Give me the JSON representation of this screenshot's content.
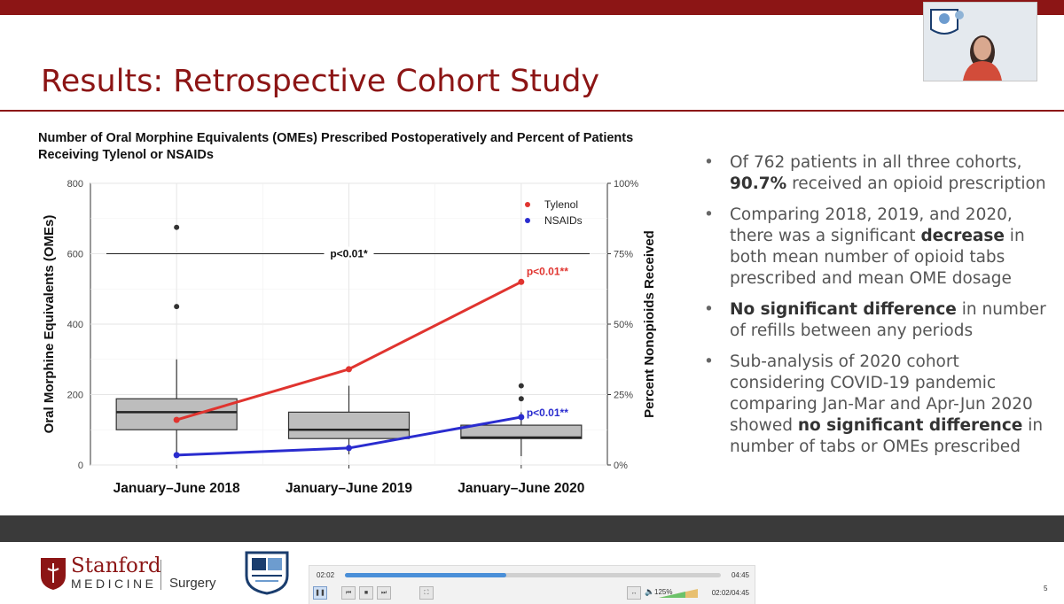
{
  "slide": {
    "title": "Results: Retrospective Cohort Study",
    "page_number": "5"
  },
  "chart_data": {
    "type": "box",
    "title": "Number of Oral Morphine Equivalents (OMEs) Prescribed Postoperatively and Percent of Patients Receiving Tylenol or NSAIDs",
    "ylabel": "Oral Morphine Equivalents (OMEs)",
    "y2label": "Percent Nonopioids Received",
    "categories": [
      "January–June 2018",
      "January–June 2019",
      "January–June 2020"
    ],
    "ylim": [
      0,
      800
    ],
    "y_ticks": [
      "0",
      "200",
      "400",
      "600",
      "800"
    ],
    "y2lim": [
      0,
      100
    ],
    "y2_ticks": [
      "0%",
      "25%",
      "50%",
      "75%",
      "100%"
    ],
    "grid": true,
    "boxes": [
      {
        "q1": 100,
        "median": 150,
        "q3": 188,
        "whisker_low": 30,
        "whisker_high": 300,
        "outliers": [
          450,
          675
        ]
      },
      {
        "q1": 75,
        "median": 100,
        "q3": 150,
        "whisker_low": 30,
        "whisker_high": 225,
        "outliers": []
      },
      {
        "q1": 75,
        "median": 78,
        "q3": 113,
        "whisker_low": 25,
        "whisker_high": 150,
        "outliers": [
          188,
          225
        ]
      }
    ],
    "series": [
      {
        "name": "Tylenol",
        "color": "#e0342f",
        "values": [
          16,
          34,
          65
        ]
      },
      {
        "name": "NSAIDs",
        "color": "#2a2ccf",
        "values": [
          3.5,
          6,
          17
        ]
      }
    ],
    "annotations": [
      {
        "text": "p<0.01*",
        "y": 600
      },
      {
        "text": "p<0.01**",
        "color": "#e0342f"
      },
      {
        "text": "p<0.01**",
        "color": "#2a2ccf"
      }
    ],
    "legend_position": "top-right"
  },
  "bullets": [
    {
      "pre": "Of 762 patients in all three cohorts, ",
      "bold": "90.7%",
      "post": " received an opioid prescription"
    },
    {
      "pre": "Comparing 2018, 2019, and 2020, there was a significant ",
      "bold": "decrease",
      "post": " in both mean number of opioid tabs prescribed and mean OME dosage"
    },
    {
      "pre": "",
      "bold": "No significant difference",
      "post": " in number of refills between any periods"
    },
    {
      "pre": "Sub-analysis of 2020 cohort considering COVID-19 pandemic comparing Jan-Mar and Apr-Jun 2020 showed ",
      "bold": "no significant difference",
      "post": " in number of tabs or OMEs prescribed"
    }
  ],
  "footer": {
    "brand": "Stanford",
    "brand_sub": "MEDICINE",
    "department": "Surgery"
  },
  "player": {
    "current_time": "02:02",
    "total_time": "04:45",
    "progress": 0.43,
    "speed": "125%",
    "readout": "02:02/04:45"
  },
  "colors": {
    "brand": "#8c1515",
    "tylenol": "#e0342f",
    "nsaids": "#2a2ccf"
  }
}
